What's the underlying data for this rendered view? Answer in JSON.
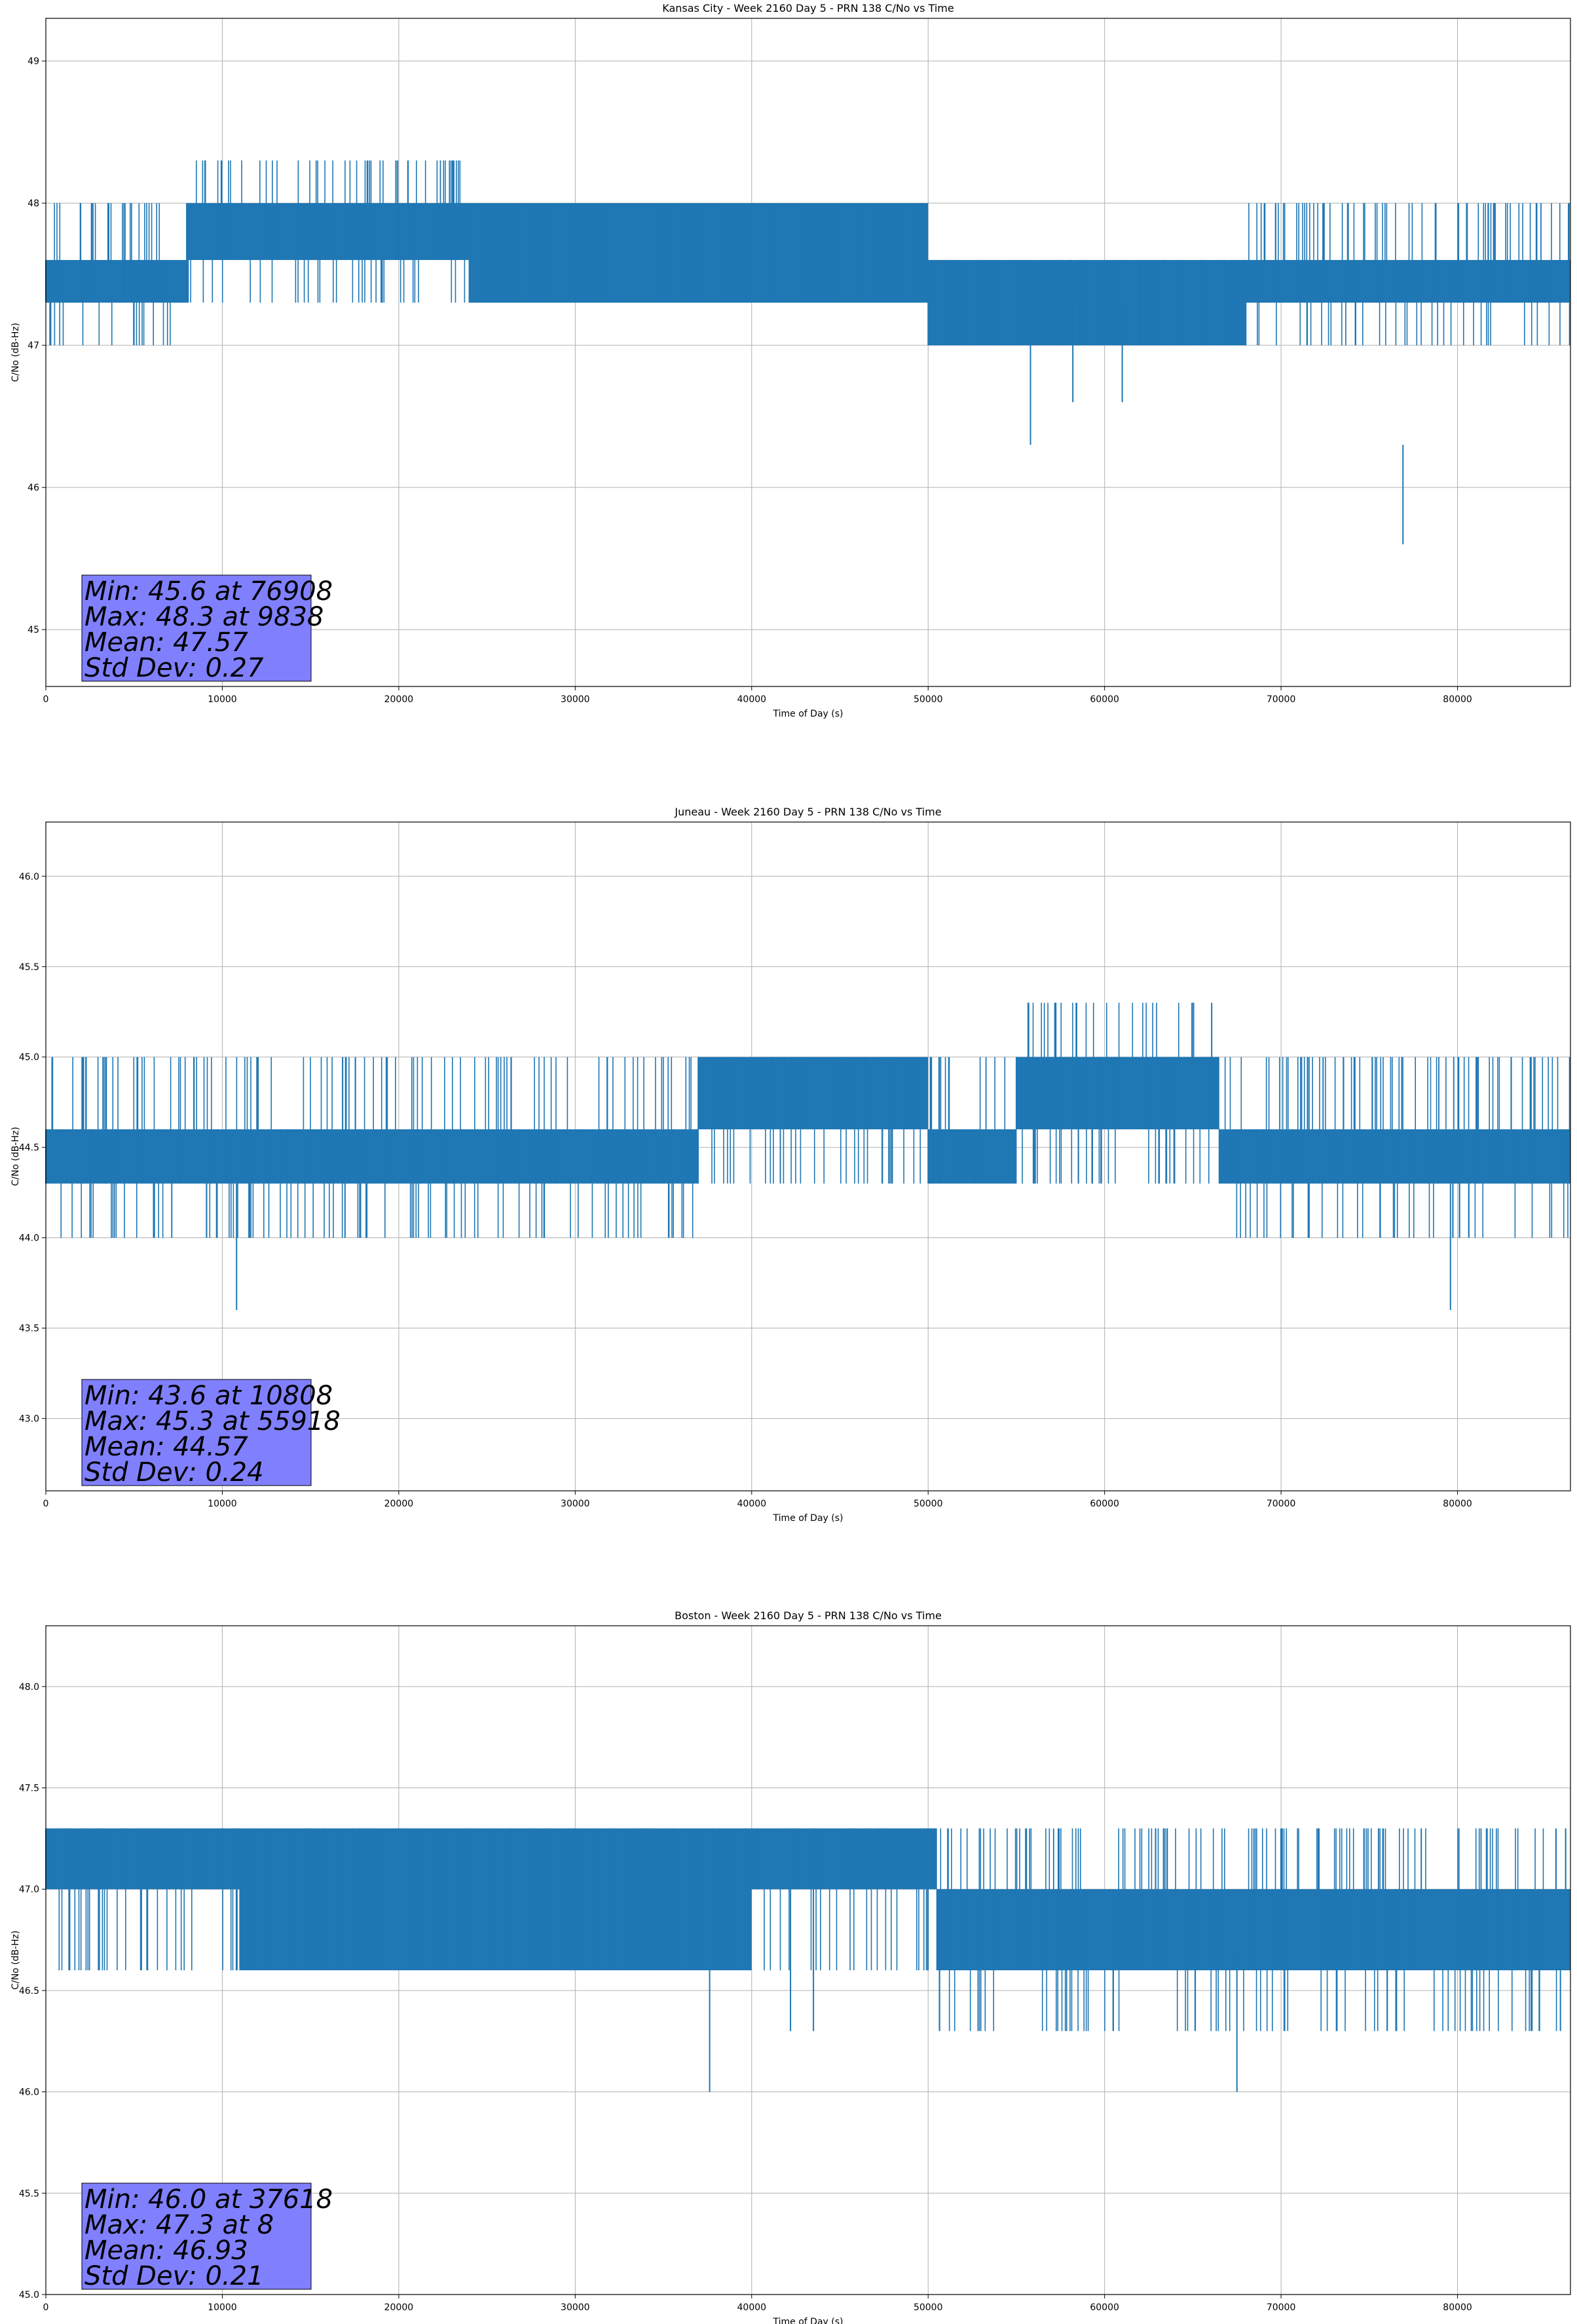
{
  "chart_data": [
    {
      "type": "line",
      "title": "Kansas City - Week 2160 Day 5 - PRN 138 C/No vs Time",
      "xlabel": "Time of Day (s)",
      "ylabel": "C/No (dB-Hz)",
      "xlim": [
        0,
        86400
      ],
      "ylim": [
        44.6,
        49.3
      ],
      "xticks": [
        0,
        10000,
        20000,
        30000,
        40000,
        50000,
        60000,
        70000,
        80000
      ],
      "yticks": [
        45,
        46,
        47,
        48,
        49
      ],
      "ytick_labels": [
        "45",
        "46",
        "47",
        "48",
        "49"
      ],
      "grid": true,
      "color": "#1f77b4",
      "series": [
        {
          "segments": [
            {
              "x": [
                0,
                8000
              ],
              "levels": [
                47.3,
                47.6
              ],
              "upper_spikes": 48.0,
              "lower_spikes": 47.0
            },
            {
              "x": [
                8000,
                24000
              ],
              "levels": [
                47.6,
                48.0
              ],
              "upper_spikes": 48.3,
              "lower_spikes": 47.3
            },
            {
              "x": [
                24000,
                50000
              ],
              "levels": [
                47.3,
                48.0
              ],
              "upper_spikes": 48.0,
              "lower_spikes": 47.3
            },
            {
              "x": [
                50000,
                68000
              ],
              "levels": [
                47.0,
                47.6
              ],
              "upper_spikes": 47.6,
              "lower_spikes": 47.0
            },
            {
              "x": [
                68000,
                86400
              ],
              "levels": [
                47.3,
                47.6
              ],
              "upper_spikes": 48.0,
              "lower_spikes": 47.0
            }
          ],
          "dips": [
            {
              "x": 55800,
              "y": 46.3
            },
            {
              "x": 58200,
              "y": 46.6
            },
            {
              "x": 61000,
              "y": 46.6
            },
            {
              "x": 76908,
              "y": 45.6
            }
          ]
        }
      ],
      "stats": {
        "lines": [
          "Min: 45.6 at 76908",
          "Max: 48.3 at 9838",
          "Mean: 47.57",
          "Std Dev: 0.27"
        ],
        "min": 45.6,
        "min_x": 76908,
        "max": 48.3,
        "max_x": 9838,
        "mean": 47.57,
        "std_dev": 0.27,
        "box_color": "#8080ff"
      }
    },
    {
      "type": "line",
      "title": "Juneau - Week 2160 Day 5 - PRN 138 C/No vs Time",
      "xlabel": "Time of Day (s)",
      "ylabel": "C/No (dB-Hz)",
      "xlim": [
        0,
        86400
      ],
      "ylim": [
        42.6,
        46.3
      ],
      "xticks": [
        0,
        10000,
        20000,
        30000,
        40000,
        50000,
        60000,
        70000,
        80000
      ],
      "yticks": [
        43.0,
        43.5,
        44.0,
        44.5,
        45.0,
        45.5,
        46.0
      ],
      "ytick_labels": [
        "43.0",
        "43.5",
        "44.0",
        "44.5",
        "45.0",
        "45.5",
        "46.0"
      ],
      "grid": true,
      "color": "#1f77b4",
      "series": [
        {
          "segments": [
            {
              "x": [
                0,
                9000
              ],
              "levels": [
                44.3,
                44.6
              ],
              "upper_spikes": 45.0,
              "lower_spikes": 44.0
            },
            {
              "x": [
                9000,
                37000
              ],
              "levels": [
                44.3,
                44.6
              ],
              "upper_spikes": 45.0,
              "lower_spikes": 44.0
            },
            {
              "x": [
                37000,
                50000
              ],
              "levels": [
                44.6,
                45.0
              ],
              "upper_spikes": 45.0,
              "lower_spikes": 44.3
            },
            {
              "x": [
                50000,
                55000
              ],
              "levels": [
                44.3,
                44.6
              ],
              "upper_spikes": 45.0,
              "lower_spikes": 44.3
            },
            {
              "x": [
                55000,
                66500
              ],
              "levels": [
                44.6,
                45.0
              ],
              "upper_spikes": 45.3,
              "lower_spikes": 44.3
            },
            {
              "x": [
                66500,
                86400
              ],
              "levels": [
                44.3,
                44.6
              ],
              "upper_spikes": 45.0,
              "lower_spikes": 44.0
            }
          ],
          "dips": [
            {
              "x": 10808,
              "y": 43.6
            },
            {
              "x": 79600,
              "y": 43.6
            }
          ]
        }
      ],
      "stats": {
        "lines": [
          "Min: 43.6 at 10808",
          "Max: 45.3 at 55918",
          "Mean: 44.57",
          "Std Dev: 0.24"
        ],
        "min": 43.6,
        "min_x": 10808,
        "max": 45.3,
        "max_x": 55918,
        "mean": 44.57,
        "std_dev": 0.24,
        "box_color": "#8080ff"
      }
    },
    {
      "type": "line",
      "title": "Boston - Week 2160 Day 5 - PRN 138 C/No vs Time",
      "xlabel": "Time of Day (s)",
      "ylabel": "C/No (dB-Hz)",
      "xlim": [
        0,
        86400
      ],
      "ylim": [
        45.0,
        48.3
      ],
      "xticks": [
        0,
        10000,
        20000,
        30000,
        40000,
        50000,
        60000,
        70000,
        80000
      ],
      "yticks": [
        45.0,
        45.5,
        46.0,
        46.5,
        47.0,
        47.5,
        48.0
      ],
      "ytick_labels": [
        "45.0",
        "45.5",
        "46.0",
        "46.5",
        "47.0",
        "47.5",
        "48.0"
      ],
      "grid": true,
      "color": "#1f77b4",
      "series": [
        {
          "segments": [
            {
              "x": [
                0,
                11000
              ],
              "levels": [
                47.0,
                47.3
              ],
              "upper_spikes": 47.3,
              "lower_spikes": 46.6
            },
            {
              "x": [
                11000,
                40000
              ],
              "levels": [
                46.6,
                47.3
              ],
              "upper_spikes": 47.3,
              "lower_spikes": 46.6
            },
            {
              "x": [
                40000,
                50500
              ],
              "levels": [
                47.0,
                47.3
              ],
              "upper_spikes": 47.3,
              "lower_spikes": 46.6
            },
            {
              "x": [
                50500,
                86400
              ],
              "levels": [
                46.6,
                47.0
              ],
              "upper_spikes": 47.3,
              "lower_spikes": 46.3
            }
          ],
          "dips": [
            {
              "x": 37618,
              "y": 46.0
            },
            {
              "x": 42200,
              "y": 46.3
            },
            {
              "x": 43500,
              "y": 46.3
            },
            {
              "x": 67500,
              "y": 46.0
            }
          ]
        }
      ],
      "stats": {
        "lines": [
          "Min: 46.0 at 37618",
          "Max: 47.3 at 8",
          "Mean: 46.93",
          "Std Dev: 0.21"
        ],
        "min": 46.0,
        "min_x": 37618,
        "max": 47.3,
        "max_x": 8,
        "mean": 46.93,
        "std_dev": 0.21,
        "box_color": "#8080ff"
      }
    }
  ]
}
